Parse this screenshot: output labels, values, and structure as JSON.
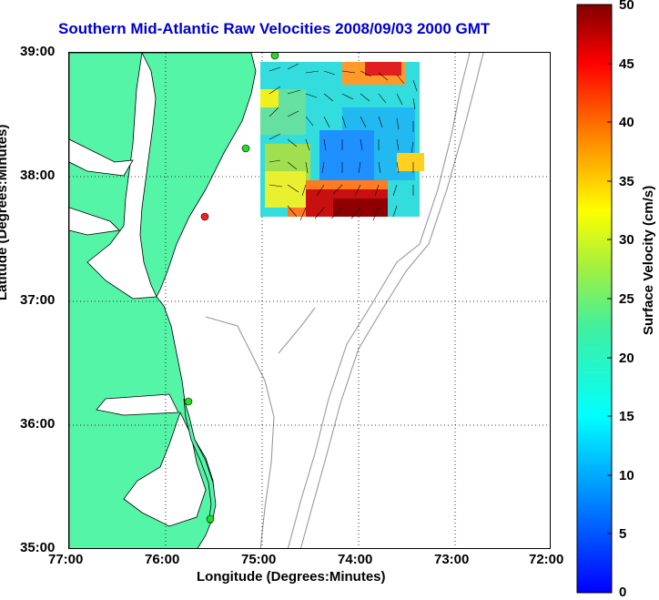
{
  "title": "Southern Mid-Atlantic Raw Velocities 2008/09/03 2000 GMT",
  "x_axis": {
    "label": "Longitude (Degrees:Minutes)",
    "ticks": [
      "77:00",
      "76:00",
      "75:00",
      "74:00",
      "73:00",
      "72:00"
    ]
  },
  "y_axis": {
    "label": "Latitude (Degrees:Minutes)",
    "ticks": [
      "39:00",
      "38:00",
      "37:00",
      "36:00",
      "35:00"
    ]
  },
  "colorbar": {
    "label": "Surface Velocity (cm/s)",
    "ticks": [
      "50",
      "45",
      "40",
      "35",
      "30",
      "25",
      "20",
      "15",
      "10",
      "5",
      "0"
    ],
    "range": [
      0,
      50
    ]
  },
  "colors": {
    "land": "#55f5a8",
    "title": "#0000cc",
    "contour": "#999999",
    "station_green": "#22dd22",
    "station_red": "#ee2222"
  },
  "map_extent": {
    "lon": [
      -77,
      -72
    ],
    "lat": [
      35,
      39
    ]
  }
}
